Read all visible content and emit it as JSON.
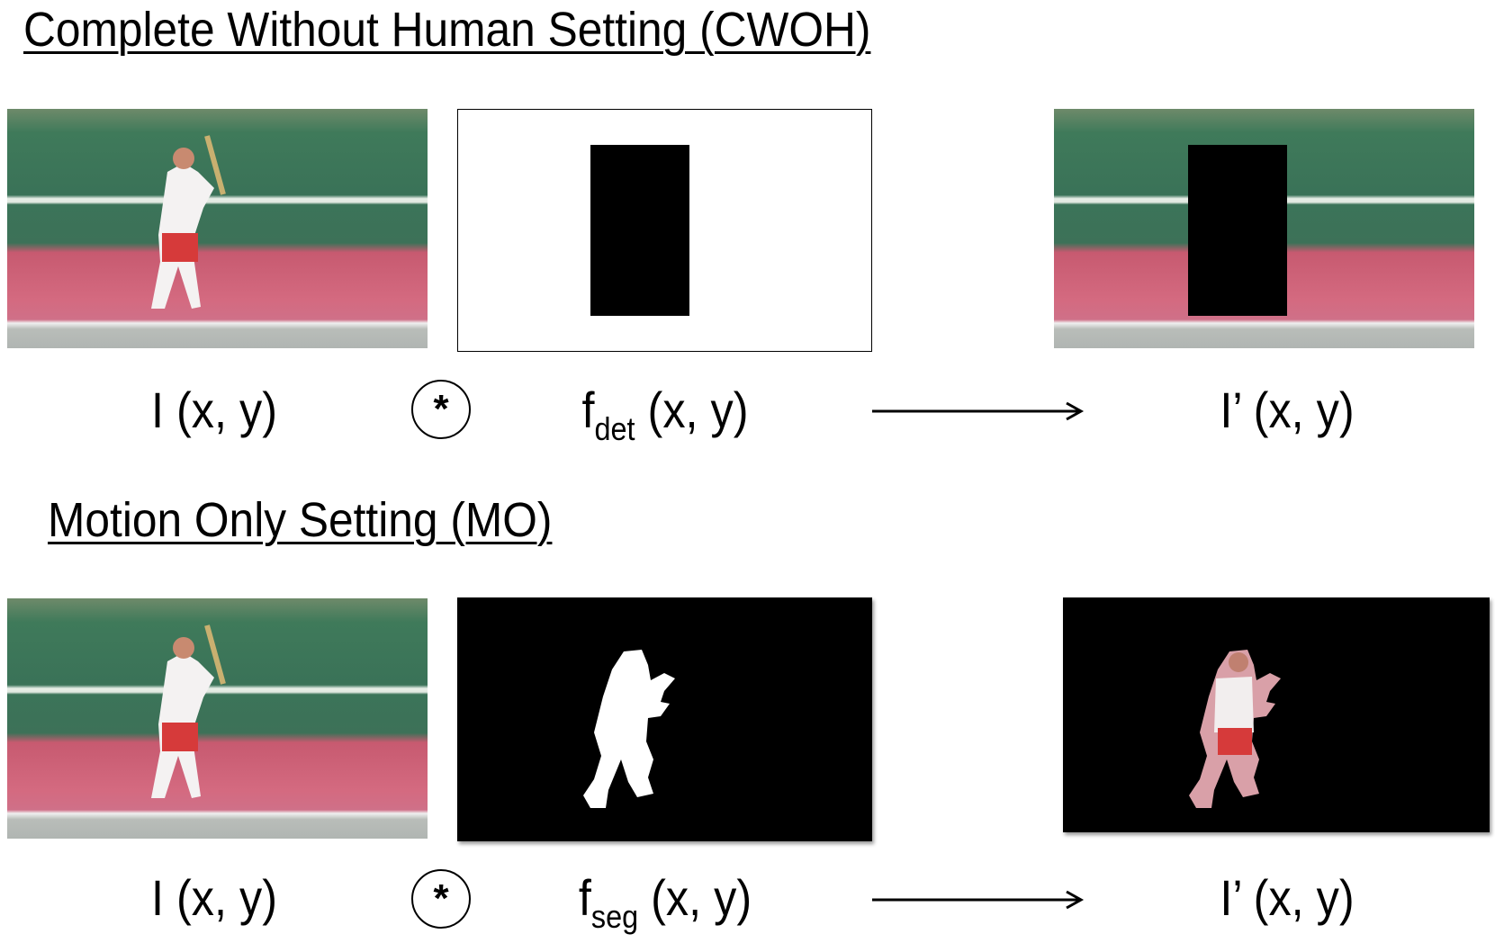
{
  "sections": [
    {
      "title": "Complete Without Human Setting (CWOH)",
      "input_label": "I (x, y)",
      "operator": "*",
      "filter_label": {
        "base": "f",
        "sub": "det",
        "rest": " (x, y)"
      },
      "output_label": "I’ (x, y)"
    },
    {
      "title": "Motion Only Setting (MO)",
      "input_label": "I (x, y)",
      "operator": "*",
      "filter_label": {
        "base": "f",
        "sub": "seg",
        "rest": " (x, y)"
      },
      "output_label": "I’ (x, y)"
    }
  ]
}
